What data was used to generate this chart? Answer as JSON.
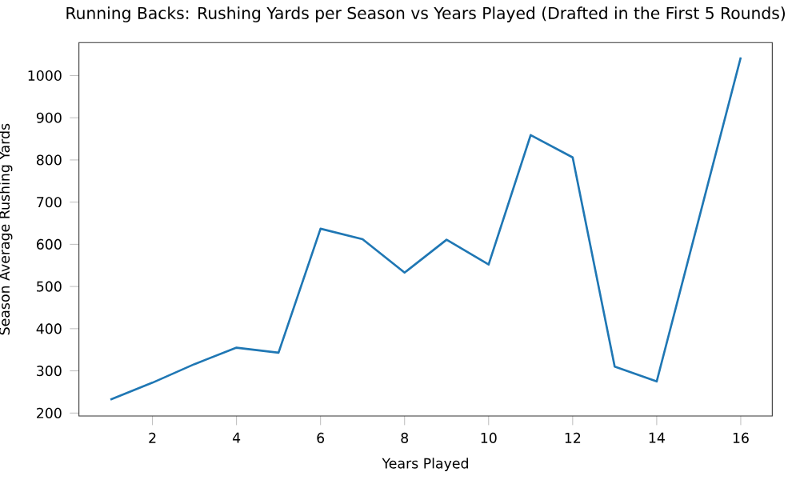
{
  "chart_data": {
    "type": "line",
    "title": "Running Backs: Rushing Yards per Season vs Years Played (Drafted in the First 5 Rounds)",
    "xlabel": "Years Played",
    "ylabel": "Season Average Rushing Yards",
    "x": [
      1,
      2,
      3,
      4,
      5,
      6,
      7,
      8,
      9,
      10,
      11,
      12,
      13,
      14,
      16
    ],
    "series": [
      {
        "color": "#1f77b4",
        "values": [
          232,
          272,
          316,
          355,
          343,
          637,
          612,
          533,
          611,
          552,
          859,
          806,
          310,
          275,
          1043
        ]
      }
    ],
    "xlim": [
      0.25,
      16.75
    ],
    "ylim": [
      193,
      1078
    ],
    "xticks": [
      2,
      4,
      6,
      8,
      10,
      12,
      14,
      16
    ],
    "yticks": [
      200,
      300,
      400,
      500,
      600,
      700,
      800,
      900,
      1000
    ],
    "grid": false,
    "marker": "none",
    "line_style": "solid"
  }
}
